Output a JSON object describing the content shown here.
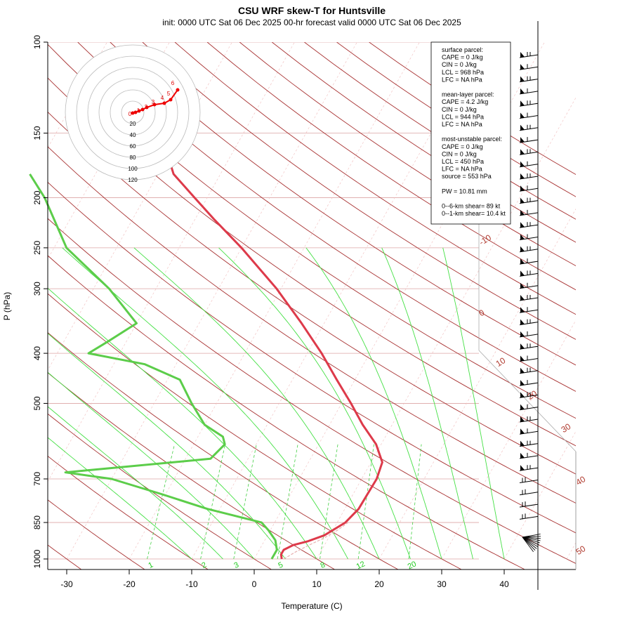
{
  "chart_data": {
    "type": "line",
    "title": "CSU WRF skew-T for Huntsville",
    "subtitle": "init: 0000 UTC Sat 06 Dec 2025     00-hr forecast valid 0000 UTC Sat 06 Dec 2025",
    "xlabel": "Temperature (C)",
    "ylabel": "P (hPa)",
    "xlim": [
      -33,
      45
    ],
    "ylim": [
      1000,
      100
    ],
    "y_scale": "log",
    "skew": true,
    "x_ticks": [
      -30,
      -20,
      -10,
      0,
      10,
      20,
      30,
      40
    ],
    "y_ticks": [
      100,
      150,
      200,
      250,
      300,
      400,
      500,
      700,
      850,
      1000
    ],
    "dry_adiabat_labels": [
      "-10",
      "0",
      "10",
      "20",
      "30",
      "40",
      "50"
    ],
    "mixing_ratio_labels": [
      "1",
      "2",
      "3",
      "5",
      "8",
      "12",
      "20"
    ],
    "series": [
      {
        "name": "",
        "color": "#dd3a4a",
        "points": [
          [
            1000,
            4.4
          ],
          [
            980,
            3.9
          ],
          [
            960,
            3.9
          ],
          [
            940,
            5.0
          ],
          [
            925,
            6.9
          ],
          [
            900,
            9.1
          ],
          [
            850,
            11.3
          ],
          [
            800,
            12.2
          ],
          [
            750,
            12.3
          ],
          [
            700,
            12.4
          ],
          [
            650,
            11.8
          ],
          [
            600,
            9.2
          ],
          [
            550,
            5.3
          ],
          [
            500,
            1.5
          ],
          [
            450,
            -2.9
          ],
          [
            400,
            -7.7
          ],
          [
            350,
            -13.6
          ],
          [
            300,
            -20.7
          ],
          [
            250,
            -30.0
          ],
          [
            220,
            -37.0
          ],
          [
            200,
            -42.0
          ],
          [
            180,
            -47.5
          ],
          [
            160,
            -51.2
          ],
          [
            140,
            -54.0
          ],
          [
            120,
            -57.0
          ],
          [
            110,
            -59.4
          ]
        ]
      },
      {
        "name": "",
        "color": "#5ccd4a",
        "points": [
          [
            1000,
            2.8
          ],
          [
            960,
            2.8
          ],
          [
            920,
            1.7
          ],
          [
            880,
            -0.3
          ],
          [
            850,
            -2.1
          ],
          [
            800,
            -12.0
          ],
          [
            750,
            -20.5
          ],
          [
            700,
            -30.0
          ],
          [
            680,
            -38.0
          ],
          [
            640,
            -16.0
          ],
          [
            600,
            -15.0
          ],
          [
            580,
            -16.0
          ],
          [
            550,
            -20.0
          ],
          [
            500,
            -24.0
          ],
          [
            450,
            -28.0
          ],
          [
            420,
            -35.0
          ],
          [
            400,
            -45.0
          ],
          [
            380,
            -43.0
          ],
          [
            350,
            -40.0
          ],
          [
            300,
            -47.5
          ],
          [
            250,
            -58.0
          ],
          [
            200,
            -66.0
          ],
          [
            180,
            -70.5
          ]
        ]
      }
    ],
    "hodograph": {
      "range_labels": [
        "20",
        "40",
        "60",
        "80",
        "100",
        "120"
      ],
      "height_labels": [
        "0",
        "1",
        "2",
        "3",
        "4",
        "5",
        "6"
      ]
    },
    "info": [
      "surface parcel:",
      "CAPE = 0 J/kg",
      "CIN = 0 J/kg",
      "LCL = 968 hPa",
      "LFC = NA hPa",
      "",
      "mean-layer parcel:",
      "CAPE = 4.2 J/kg",
      "CIN = 0 J/kg",
      "LCL = 944 hPa",
      "LFC = NA hPa",
      "",
      "most-unstable parcel:",
      "CAPE = 0 J/kg",
      "CIN = 0 J/kg",
      "LCL = 450 hPa",
      "LFC = NA hPa",
      "source = 553 hPa",
      "",
      "PW =  10.81 mm",
      "",
      "0--6-km shear= 89 kt",
      "0--1-km shear= 10.4 kt"
    ]
  }
}
